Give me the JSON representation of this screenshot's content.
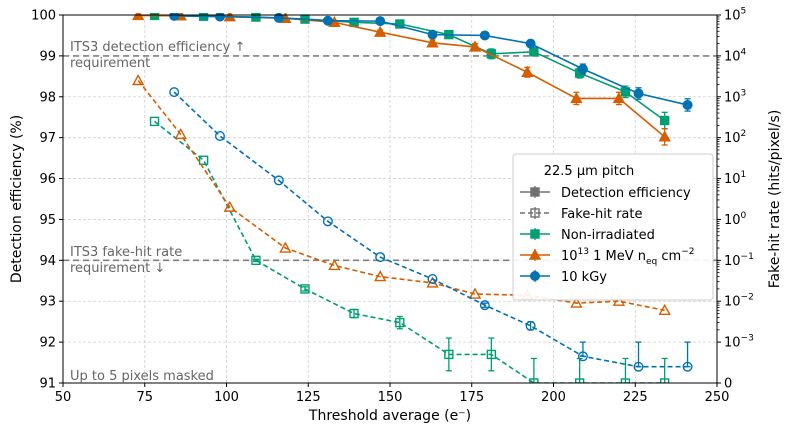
{
  "chart_data": {
    "type": "line",
    "xlabel": "Threshold average (e⁻)",
    "ylabel_left": "Detection efficiency (%)",
    "ylabel_right": "Fake-hit rate (hits/pixel/s)",
    "xlim": [
      50,
      250
    ],
    "ylim_left": [
      91,
      100
    ],
    "ylim_right_log": [
      -4,
      5
    ],
    "x_ticks": [
      "50",
      "75",
      "100",
      "125",
      "150",
      "175",
      "200",
      "225",
      "250"
    ],
    "y_left_ticks": [
      "91",
      "92",
      "93",
      "94",
      "95",
      "96",
      "97",
      "98",
      "99",
      "100"
    ],
    "y_right_ticks": [
      {
        "base": "0",
        "exp": ""
      },
      {
        "base": "10",
        "exp": "−3"
      },
      {
        "base": "10",
        "exp": "−2"
      },
      {
        "base": "10",
        "exp": "−1"
      },
      {
        "base": "10",
        "exp": "0"
      },
      {
        "base": "10",
        "exp": "1"
      },
      {
        "base": "10",
        "exp": "2"
      },
      {
        "base": "10",
        "exp": "3"
      },
      {
        "base": "10",
        "exp": "4"
      },
      {
        "base": "10",
        "exp": "5"
      }
    ],
    "grid": true,
    "legend_position": "center-right",
    "annotations": {
      "detection_req_line1": "ITS3 detection efficiency ↑",
      "detection_req_line2": "requirement",
      "fakehit_req_line1": "ITS3 fake-hit rate",
      "fakehit_req_line2": "requirement ↓",
      "masked": "Up to 5 pixels masked"
    },
    "requirements": {
      "detection_efficiency": 99,
      "fake_hit_rate_log10": -1
    },
    "legend": {
      "title": "22.5 µm pitch",
      "style_entries": [
        "Detection efficiency",
        "Fake-hit rate"
      ],
      "series_entries": [
        {
          "text": "Non-irradiated"
        },
        {
          "text_parts": [
            "10",
            "13",
            " 1 MeV n",
            "eq",
            " cm",
            "−2"
          ]
        },
        {
          "text": "10 kGy"
        }
      ]
    },
    "colors": {
      "non_irradiated": "#009e73",
      "neutron": "#d55e00",
      "kgy": "#0072b2",
      "requirement_line": "#808080",
      "legend_style": "#707070"
    },
    "series": [
      {
        "key": "non_irradiated",
        "marker": "square",
        "efficiency": [
          {
            "x": 78,
            "y": 99.99,
            "err": 0.01
          },
          {
            "x": 93,
            "y": 99.97,
            "err": 0.01
          },
          {
            "x": 109,
            "y": 99.95,
            "err": 0.01
          },
          {
            "x": 124,
            "y": 99.9,
            "err": 0.02
          },
          {
            "x": 139,
            "y": 99.82,
            "err": 0.03
          },
          {
            "x": 153,
            "y": 99.78,
            "err": 0.04
          },
          {
            "x": 168,
            "y": 99.52,
            "err": 0.06
          },
          {
            "x": 181,
            "y": 99.05,
            "err": 0.12
          },
          {
            "x": 194,
            "y": 99.1,
            "err": 0.1
          },
          {
            "x": 208,
            "y": 98.58,
            "err": 0.12
          },
          {
            "x": 222,
            "y": 98.12,
            "err": 0.14
          },
          {
            "x": 234,
            "y": 97.42,
            "err": 0.2
          }
        ],
        "fakehit": [
          {
            "x": 78,
            "y": "2.5e2"
          },
          {
            "x": 93,
            "y": "2.8e1"
          },
          {
            "x": 109,
            "y": "1e-1",
            "err_log": 0.03
          },
          {
            "x": 124,
            "y": "2e-2",
            "err_log": 0.05
          },
          {
            "x": 139,
            "y": "5e-3",
            "err_log": 0.1
          },
          {
            "x": 153,
            "y": "3e-3",
            "err_log": 0.15
          },
          {
            "x": 168,
            "y": "5e-4",
            "err_log": 0.4
          },
          {
            "x": 181,
            "y": "5e-4",
            "err_log": 0.4
          },
          {
            "x": 194,
            "y": "0",
            "err_up_log": -3.4
          },
          {
            "x": 208,
            "y": "0",
            "err_up_log": -3.4
          },
          {
            "x": 222,
            "y": "0",
            "err_up_log": -3.4
          },
          {
            "x": 234,
            "y": "0",
            "err_up_log": -3.4
          }
        ]
      },
      {
        "key": "neutron",
        "marker": "triangle",
        "efficiency": [
          {
            "x": 73,
            "y": 99.99,
            "err": 0.01
          },
          {
            "x": 86,
            "y": 99.98,
            "err": 0.01
          },
          {
            "x": 101,
            "y": 99.96,
            "err": 0.01
          },
          {
            "x": 118,
            "y": 99.92,
            "err": 0.02
          },
          {
            "x": 133,
            "y": 99.82,
            "err": 0.03
          },
          {
            "x": 147,
            "y": 99.58,
            "err": 0.05
          },
          {
            "x": 163,
            "y": 99.32,
            "err": 0.07
          },
          {
            "x": 176,
            "y": 99.22,
            "err": 0.08
          },
          {
            "x": 192,
            "y": 98.6,
            "err": 0.12
          },
          {
            "x": 207,
            "y": 97.96,
            "err": 0.15
          },
          {
            "x": 220,
            "y": 97.96,
            "err": 0.15
          },
          {
            "x": 234,
            "y": 97.02,
            "err": 0.2
          }
        ],
        "fakehit": [
          {
            "x": 73,
            "y": "2.5e3"
          },
          {
            "x": 86,
            "y": "1.2e2"
          },
          {
            "x": 101,
            "y": "2e0"
          },
          {
            "x": 118,
            "y": "2e-1"
          },
          {
            "x": 133,
            "y": "7.5e-2"
          },
          {
            "x": 147,
            "y": "4e-2"
          },
          {
            "x": 163,
            "y": "2.8e-2"
          },
          {
            "x": 176,
            "y": "1.5e-2"
          },
          {
            "x": 192,
            "y": "1.4e-2"
          },
          {
            "x": 207,
            "y": "9e-3"
          },
          {
            "x": 220,
            "y": "1e-2"
          },
          {
            "x": 234,
            "y": "6e-3"
          }
        ]
      },
      {
        "key": "kgy",
        "marker": "circle",
        "efficiency": [
          {
            "x": 84,
            "y": 99.98,
            "err": 0.01
          },
          {
            "x": 98,
            "y": 99.96,
            "err": 0.01
          },
          {
            "x": 116,
            "y": 99.93,
            "err": 0.02
          },
          {
            "x": 131,
            "y": 99.86,
            "err": 0.03
          },
          {
            "x": 147,
            "y": 99.85,
            "err": 0.04
          },
          {
            "x": 163,
            "y": 99.52,
            "err": 0.05
          },
          {
            "x": 179,
            "y": 99.5,
            "err": 0.06
          },
          {
            "x": 193,
            "y": 99.3,
            "err": 0.08
          },
          {
            "x": 209,
            "y": 98.68,
            "err": 0.12
          },
          {
            "x": 226,
            "y": 98.08,
            "err": 0.14
          },
          {
            "x": 241,
            "y": 97.8,
            "err": 0.15
          }
        ],
        "fakehit": [
          {
            "x": 84,
            "y": "1.3e3"
          },
          {
            "x": 98,
            "y": "1.1e2"
          },
          {
            "x": 116,
            "y": "9e0"
          },
          {
            "x": 131,
            "y": "9e-1"
          },
          {
            "x": 147,
            "y": "1.2e-1"
          },
          {
            "x": 163,
            "y": "3.5e-2"
          },
          {
            "x": 179,
            "y": "8e-3",
            "err_log": 0.05
          },
          {
            "x": 193,
            "y": "2.5e-3",
            "err_log": 0.1
          },
          {
            "x": 209,
            "y": "4.5e-4",
            "err_up_log": -3.0
          },
          {
            "x": 226,
            "y": "2.5e-4",
            "err_up_log": -3.0
          },
          {
            "x": 241,
            "y": "2.5e-4",
            "err_up_log": -3.0
          }
        ]
      }
    ]
  }
}
